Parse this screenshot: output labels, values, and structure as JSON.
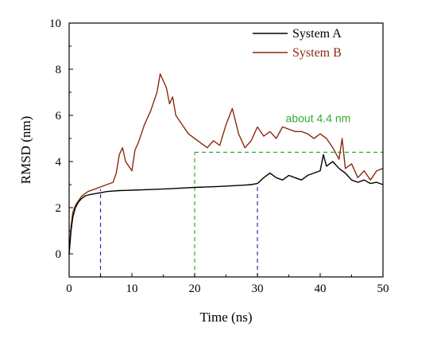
{
  "chart_data": {
    "type": "line",
    "title": "",
    "xlabel": "Time (ns)",
    "ylabel": "RMSD (nm)",
    "xlim": [
      0,
      50
    ],
    "ylim": [
      -1,
      10
    ],
    "x_ticks": [
      0,
      10,
      20,
      30,
      40,
      50
    ],
    "y_ticks": [
      0,
      2,
      4,
      6,
      8,
      10
    ],
    "grid": false,
    "legend_position": "top-right",
    "series": [
      {
        "name": "System A",
        "color": "#000000",
        "x": [
          0,
          0.3,
          0.6,
          1,
          1.5,
          2,
          2.5,
          3,
          4,
          5,
          6,
          7,
          8,
          9,
          10,
          12,
          14,
          16,
          18,
          20,
          22,
          24,
          26,
          28,
          29,
          30,
          31,
          32,
          33,
          34,
          35,
          36,
          37,
          38,
          39,
          40,
          40.5,
          41,
          41.5,
          42,
          43,
          44,
          45,
          46,
          47,
          48,
          49,
          50
        ],
        "values": [
          0,
          1.0,
          1.6,
          2.0,
          2.25,
          2.4,
          2.5,
          2.55,
          2.6,
          2.65,
          2.7,
          2.72,
          2.74,
          2.75,
          2.76,
          2.78,
          2.8,
          2.82,
          2.85,
          2.88,
          2.9,
          2.92,
          2.95,
          2.98,
          3.0,
          3.05,
          3.3,
          3.5,
          3.3,
          3.2,
          3.4,
          3.3,
          3.2,
          3.4,
          3.5,
          3.6,
          4.3,
          3.8,
          3.9,
          4.0,
          3.7,
          3.5,
          3.2,
          3.1,
          3.2,
          3.05,
          3.1,
          3.0
        ]
      },
      {
        "name": "System B",
        "color": "#8b2a10",
        "x": [
          0,
          0.3,
          0.6,
          1,
          1.5,
          2,
          3,
          4,
          5,
          6,
          7,
          7.5,
          8,
          8.5,
          9,
          9.5,
          10,
          10.5,
          11,
          11.5,
          12,
          13,
          14,
          14.5,
          15,
          15.5,
          16,
          16.5,
          17,
          18,
          19,
          20,
          21,
          22,
          23,
          24,
          25,
          26,
          27,
          28,
          29,
          30,
          31,
          32,
          33,
          34,
          35,
          36,
          37,
          38,
          39,
          40,
          41,
          42,
          43,
          43.5,
          44,
          45,
          46,
          47,
          48,
          49,
          50
        ],
        "values": [
          0,
          1.2,
          1.8,
          2.1,
          2.3,
          2.5,
          2.7,
          2.8,
          2.9,
          3.0,
          3.1,
          3.5,
          4.3,
          4.6,
          4.0,
          3.8,
          3.6,
          4.5,
          4.8,
          5.2,
          5.6,
          6.2,
          7.0,
          7.8,
          7.5,
          7.2,
          6.5,
          6.8,
          6.0,
          5.6,
          5.2,
          5.0,
          4.8,
          4.6,
          4.9,
          4.7,
          5.6,
          6.3,
          5.2,
          4.6,
          4.9,
          5.5,
          5.1,
          5.3,
          5.0,
          5.5,
          5.4,
          5.3,
          5.3,
          5.2,
          5.0,
          5.2,
          5.0,
          4.6,
          4.1,
          5.0,
          3.7,
          3.9,
          3.3,
          3.6,
          3.2,
          3.6,
          3.7
        ]
      }
    ],
    "reference_lines": [
      {
        "orientation": "vertical",
        "x": 5,
        "y_from": -1,
        "y_to": 2.8,
        "color": "#2233aa"
      },
      {
        "orientation": "vertical",
        "x": 20,
        "y_from": -1,
        "y_to": 4.4,
        "color": "#33aa33"
      },
      {
        "orientation": "vertical",
        "x": 30,
        "y_from": -1,
        "y_to": 3.0,
        "color": "#2233aa"
      },
      {
        "orientation": "horizontal",
        "y": 4.4,
        "x_from": 20,
        "x_to": 50,
        "color": "#33aa33"
      }
    ],
    "annotations": [
      {
        "text": "about 4.4 nm",
        "x": 34.5,
        "y": 5.7,
        "color": "#33aa33"
      }
    ]
  }
}
